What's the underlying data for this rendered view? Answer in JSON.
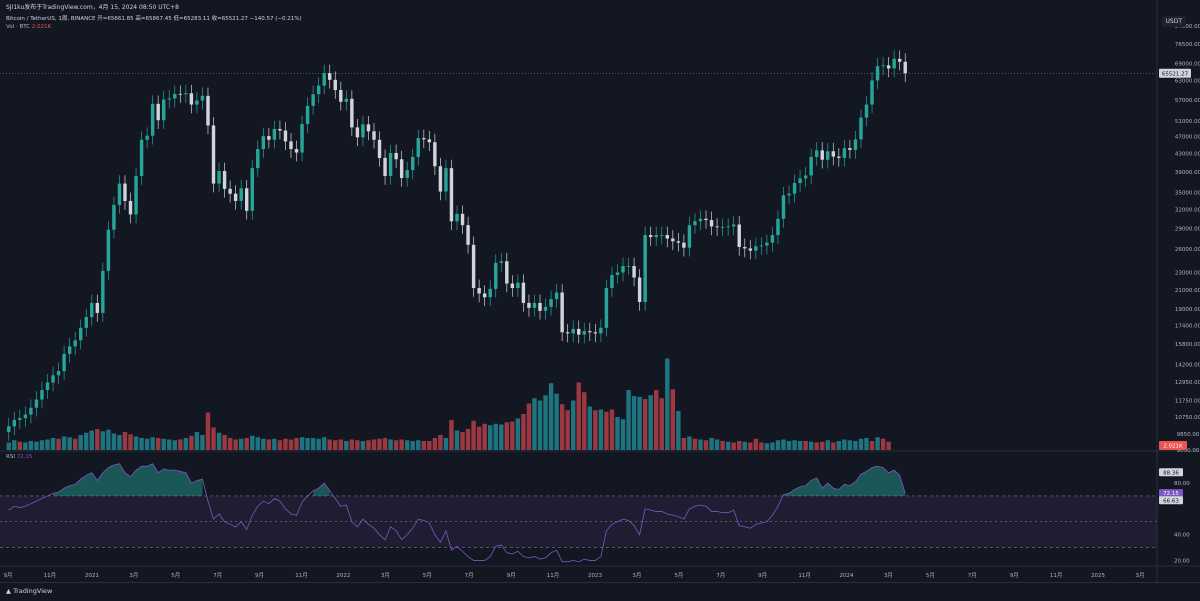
{
  "header": {
    "caption": "SJI1ku发布于TradingView.com，4月 15, 2024 08:50 UTC+8",
    "symbol": "Bitcoin / TetherUS, 1周, BINANCE",
    "ohlc": "开=65661.85 高=65867.45 低=65283.11 收=65521.27 −140.57 (−0.21%)",
    "volume_label": "Vol · BTC",
    "volume_value": "2.021K",
    "rsi_label": "RSI",
    "rsi_value": "72.15"
  },
  "currency": "USDT",
  "footer": {
    "logo_text": "TradingView",
    "logo_icon": "tradingview-logo-icon"
  },
  "colors": {
    "up": "#26a69a",
    "down": "#ef5350",
    "up_candle": "#26a69a",
    "down_candle": "#d1d4dc",
    "rsi": "#7e57c2",
    "bg": "#131722"
  },
  "chart_data": {
    "type": "candlestick",
    "interval": "1W",
    "scale": "log",
    "price_axis": [
      "84000.00",
      "76500.00",
      "69000.00",
      "63000.00",
      "57000.00",
      "51000.00",
      "47000.00",
      "43000.00",
      "39000.00",
      "35000.00",
      "32000.00",
      "29000.00",
      "26000.00",
      "23000.00",
      "21000.00",
      "19000.00",
      "17400.00",
      "15800.00",
      "14200.00",
      "12950.00",
      "11750.00",
      "10750.00",
      "9850.00",
      "9050.00"
    ],
    "current_price": "65521.27",
    "volume_badge": "2.021K",
    "x_labels": [
      "9月",
      "11月",
      "2021",
      "3月",
      "5月",
      "7月",
      "9月",
      "11月",
      "2022",
      "3月",
      "5月",
      "7月",
      "9月",
      "11月",
      "2023",
      "3月",
      "5月",
      "7月",
      "9月",
      "11月",
      "2024",
      "3月",
      "5月",
      "7月",
      "9月",
      "11月",
      "2025",
      "3月"
    ],
    "closes": [
      10250,
      10600,
      10700,
      10900,
      11300,
      11800,
      12400,
      12900,
      13400,
      13700,
      15000,
      15600,
      16100,
      17200,
      18200,
      19600,
      18600,
      23200,
      28800,
      32800,
      36700,
      33500,
      31200,
      38200,
      46200,
      47200,
      55800,
      51200,
      57100,
      57400,
      58800,
      58700,
      59000,
      55600,
      56800,
      58200,
      49800,
      36700,
      39200,
      35700,
      34800,
      33500,
      35800,
      31800,
      39800,
      44000,
      47100,
      46200,
      48900,
      48500,
      45800,
      44000,
      43200,
      50200,
      55200,
      58700,
      61400,
      65600,
      63300,
      60000,
      56400,
      57300,
      49300,
      46800,
      50100,
      48300,
      46200,
      42000,
      38200,
      43100,
      41700,
      37800,
      39400,
      42200,
      46600,
      46300,
      45600,
      40200,
      35200,
      39800,
      30100,
      31300,
      29500,
      26600,
      21200,
      20600,
      20200,
      21100,
      24200,
      24400,
      21700,
      21200,
      21800,
      19600,
      19100,
      19600,
      18800,
      19200,
      20000,
      20700,
      16800,
      16700,
      17100,
      16600,
      16900,
      16800,
      16700,
      17200,
      21200,
      22700,
      23000,
      23800,
      23800,
      22400,
      19700,
      28000,
      27700,
      28000,
      28000,
      27500,
      27100,
      26900,
      26200,
      29500,
      30100,
      30500,
      30300,
      29300,
      29200,
      29200,
      29300,
      29600,
      26300,
      26100,
      25800,
      26400,
      26500,
      26900,
      28000,
      30500,
      34500,
      34800,
      36800,
      37700,
      38300,
      42200,
      43700,
      41600,
      43500,
      42300,
      42000,
      44200,
      43800,
      46300,
      51900,
      55600,
      63100,
      68000,
      68300,
      67200,
      70700,
      69600,
      65500
    ],
    "volume": [
      {
        "v": 1.0,
        "up": true
      },
      {
        "v": 1.3,
        "up": true
      },
      {
        "v": 1.1,
        "up": false
      },
      {
        "v": 1.0,
        "up": true
      },
      {
        "v": 1.2,
        "up": true
      },
      {
        "v": 1.1,
        "up": true
      },
      {
        "v": 1.3,
        "up": true
      },
      {
        "v": 1.4,
        "up": true
      },
      {
        "v": 1.6,
        "up": true
      },
      {
        "v": 1.5,
        "up": false
      },
      {
        "v": 1.8,
        "up": true
      },
      {
        "v": 1.7,
        "up": true
      },
      {
        "v": 1.5,
        "up": false
      },
      {
        "v": 2.0,
        "up": true
      },
      {
        "v": 2.3,
        "up": true
      },
      {
        "v": 2.6,
        "up": true
      },
      {
        "v": 2.8,
        "up": false
      },
      {
        "v": 2.5,
        "up": true
      },
      {
        "v": 2.7,
        "up": true
      },
      {
        "v": 2.2,
        "up": true
      },
      {
        "v": 2.0,
        "up": true
      },
      {
        "v": 2.4,
        "up": false
      },
      {
        "v": 2.1,
        "up": false
      },
      {
        "v": 1.8,
        "up": true
      },
      {
        "v": 1.6,
        "up": true
      },
      {
        "v": 1.5,
        "up": true
      },
      {
        "v": 1.7,
        "up": true
      },
      {
        "v": 1.6,
        "up": false
      },
      {
        "v": 1.5,
        "up": true
      },
      {
        "v": 1.4,
        "up": true
      },
      {
        "v": 1.3,
        "up": true
      },
      {
        "v": 1.4,
        "up": false
      },
      {
        "v": 1.6,
        "up": true
      },
      {
        "v": 1.9,
        "up": false
      },
      {
        "v": 2.4,
        "up": true
      },
      {
        "v": 2.0,
        "up": true
      },
      {
        "v": 5.0,
        "up": false
      },
      {
        "v": 3.0,
        "up": false
      },
      {
        "v": 2.3,
        "up": true
      },
      {
        "v": 2.0,
        "up": false
      },
      {
        "v": 1.6,
        "up": false
      },
      {
        "v": 1.4,
        "up": false
      },
      {
        "v": 1.5,
        "up": true
      },
      {
        "v": 1.6,
        "up": false
      },
      {
        "v": 1.9,
        "up": true
      },
      {
        "v": 1.7,
        "up": true
      },
      {
        "v": 1.5,
        "up": true
      },
      {
        "v": 1.4,
        "up": false
      },
      {
        "v": 1.5,
        "up": true
      },
      {
        "v": 1.3,
        "up": false
      },
      {
        "v": 1.5,
        "up": false
      },
      {
        "v": 1.4,
        "up": false
      },
      {
        "v": 1.6,
        "up": false
      },
      {
        "v": 1.7,
        "up": true
      },
      {
        "v": 1.6,
        "up": true
      },
      {
        "v": 1.6,
        "up": true
      },
      {
        "v": 1.5,
        "up": true
      },
      {
        "v": 1.7,
        "up": true
      },
      {
        "v": 1.4,
        "up": false
      },
      {
        "v": 1.3,
        "up": false
      },
      {
        "v": 1.4,
        "up": false
      },
      {
        "v": 1.2,
        "up": true
      },
      {
        "v": 1.4,
        "up": false
      },
      {
        "v": 1.3,
        "up": false
      },
      {
        "v": 1.2,
        "up": true
      },
      {
        "v": 1.3,
        "up": false
      },
      {
        "v": 1.4,
        "up": false
      },
      {
        "v": 1.5,
        "up": false
      },
      {
        "v": 1.6,
        "up": false
      },
      {
        "v": 1.4,
        "up": true
      },
      {
        "v": 1.3,
        "up": false
      },
      {
        "v": 1.4,
        "up": false
      },
      {
        "v": 1.3,
        "up": true
      },
      {
        "v": 1.2,
        "up": true
      },
      {
        "v": 1.3,
        "up": true
      },
      {
        "v": 1.2,
        "up": false
      },
      {
        "v": 1.2,
        "up": false
      },
      {
        "v": 1.6,
        "up": false
      },
      {
        "v": 2.0,
        "up": false
      },
      {
        "v": 1.6,
        "up": true
      },
      {
        "v": 4.0,
        "up": false
      },
      {
        "v": 2.6,
        "up": true
      },
      {
        "v": 2.4,
        "up": false
      },
      {
        "v": 2.8,
        "up": false
      },
      {
        "v": 3.9,
        "up": false
      },
      {
        "v": 3.1,
        "up": false
      },
      {
        "v": 3.5,
        "up": false
      },
      {
        "v": 3.3,
        "up": true
      },
      {
        "v": 3.5,
        "up": true
      },
      {
        "v": 3.4,
        "up": true
      },
      {
        "v": 3.7,
        "up": false
      },
      {
        "v": 3.8,
        "up": false
      },
      {
        "v": 4.2,
        "up": true
      },
      {
        "v": 4.8,
        "up": false
      },
      {
        "v": 6.2,
        "up": false
      },
      {
        "v": 6.9,
        "up": true
      },
      {
        "v": 6.6,
        "up": true
      },
      {
        "v": 7.3,
        "up": true
      },
      {
        "v": 8.9,
        "up": true
      },
      {
        "v": 7.5,
        "up": true
      },
      {
        "v": 6.1,
        "up": false
      },
      {
        "v": 5.3,
        "up": false
      },
      {
        "v": 6.6,
        "up": true
      },
      {
        "v": 9.0,
        "up": false
      },
      {
        "v": 7.7,
        "up": false
      },
      {
        "v": 5.8,
        "up": true
      },
      {
        "v": 5.3,
        "up": false
      },
      {
        "v": 5.4,
        "up": true
      },
      {
        "v": 5.1,
        "up": false
      },
      {
        "v": 5.4,
        "up": false
      },
      {
        "v": 4.4,
        "up": true
      },
      {
        "v": 4.1,
        "up": true
      },
      {
        "v": 8.0,
        "up": true
      },
      {
        "v": 7.2,
        "up": true
      },
      {
        "v": 7.1,
        "up": true
      },
      {
        "v": 6.8,
        "up": false
      },
      {
        "v": 7.3,
        "up": true
      },
      {
        "v": 8.0,
        "up": false
      },
      {
        "v": 6.9,
        "up": false
      },
      {
        "v": 12.2,
        "up": true
      },
      {
        "v": 8.1,
        "up": false
      },
      {
        "v": 5.2,
        "up": true
      },
      {
        "v": 1.6,
        "up": false
      },
      {
        "v": 1.8,
        "up": true
      },
      {
        "v": 1.5,
        "up": false
      },
      {
        "v": 1.4,
        "up": true
      },
      {
        "v": 1.3,
        "up": false
      },
      {
        "v": 1.6,
        "up": true
      },
      {
        "v": 1.4,
        "up": true
      },
      {
        "v": 1.2,
        "up": false
      },
      {
        "v": 1.1,
        "up": true
      },
      {
        "v": 1.0,
        "up": false
      },
      {
        "v": 1.2,
        "up": false
      },
      {
        "v": 1.1,
        "up": true
      },
      {
        "v": 1.0,
        "up": false
      },
      {
        "v": 1.5,
        "up": false
      },
      {
        "v": 1.0,
        "up": false
      },
      {
        "v": 0.9,
        "up": true
      },
      {
        "v": 1.0,
        "up": true
      },
      {
        "v": 1.3,
        "up": true
      },
      {
        "v": 1.4,
        "up": true
      },
      {
        "v": 1.2,
        "up": true
      },
      {
        "v": 1.3,
        "up": true
      },
      {
        "v": 1.2,
        "up": true
      },
      {
        "v": 1.2,
        "up": false
      },
      {
        "v": 1.1,
        "up": true
      },
      {
        "v": 1.0,
        "up": false
      },
      {
        "v": 1.1,
        "up": false
      },
      {
        "v": 1.3,
        "up": true
      },
      {
        "v": 1.0,
        "up": false
      },
      {
        "v": 1.2,
        "up": true
      },
      {
        "v": 1.4,
        "up": true
      },
      {
        "v": 1.3,
        "up": true
      },
      {
        "v": 1.2,
        "up": true
      },
      {
        "v": 1.5,
        "up": true
      },
      {
        "v": 1.6,
        "up": true
      },
      {
        "v": 1.2,
        "up": false
      },
      {
        "v": 1.7,
        "up": true
      },
      {
        "v": 1.5,
        "up": false
      },
      {
        "v": 1.1,
        "up": false
      }
    ],
    "rsi_axis": [
      "88.36",
      "80.00",
      "72.15",
      "66.63",
      "40.00",
      "20.00"
    ],
    "rsi_levels": [
      70,
      50,
      30
    ],
    "rsi_badges": {
      "upper": "88.36",
      "current": "72.15",
      "ma": "66.63"
    },
    "rsi": [
      59,
      62,
      61,
      62,
      64,
      66,
      68,
      70,
      72,
      73,
      76,
      78,
      79,
      83,
      86,
      88,
      82,
      88,
      92,
      94,
      95,
      88,
      85,
      90,
      93,
      93,
      95,
      88,
      91,
      90,
      90,
      89,
      88,
      80,
      82,
      83,
      66,
      52,
      56,
      50,
      48,
      46,
      50,
      44,
      55,
      62,
      66,
      64,
      68,
      66,
      60,
      56,
      55,
      65,
      70,
      74,
      76,
      80,
      74,
      68,
      62,
      63,
      50,
      46,
      52,
      48,
      45,
      40,
      36,
      46,
      43,
      36,
      40,
      45,
      52,
      51,
      49,
      40,
      34,
      43,
      28,
      31,
      27,
      23,
      20,
      20,
      20,
      23,
      31,
      32,
      26,
      25,
      27,
      23,
      22,
      23,
      21,
      22,
      26,
      28,
      19,
      19,
      20,
      19,
      21,
      20,
      20,
      23,
      43,
      48,
      50,
      52,
      51,
      47,
      40,
      60,
      59,
      58,
      58,
      56,
      55,
      54,
      52,
      60,
      62,
      63,
      62,
      58,
      58,
      57,
      57,
      59,
      47,
      46,
      45,
      48,
      49,
      50,
      55,
      62,
      71,
      72,
      75,
      77,
      78,
      82,
      84,
      76,
      80,
      76,
      75,
      79,
      78,
      81,
      87,
      89,
      92,
      93,
      92,
      88,
      90,
      86,
      72
    ]
  }
}
